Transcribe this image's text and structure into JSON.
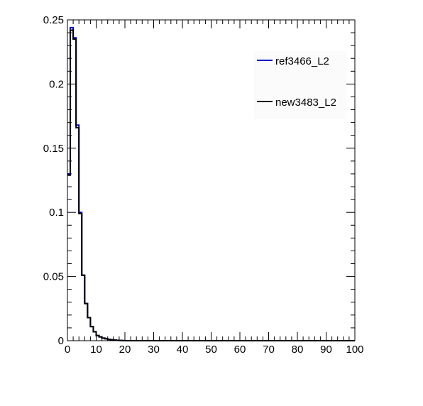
{
  "chart_data": {
    "type": "line",
    "style": "step-histogram",
    "xlim": [
      0,
      100
    ],
    "ylim": [
      0,
      0.25
    ],
    "x_ticks": [
      "0",
      "10",
      "20",
      "30",
      "40",
      "50",
      "60",
      "70",
      "80",
      "90",
      "100"
    ],
    "y_ticks": [
      "0",
      "0.05",
      "0.1",
      "0.15",
      "0.2",
      "0.25"
    ],
    "bin_width": 1,
    "x": [
      0,
      1,
      2,
      3,
      4,
      5,
      6,
      7,
      8,
      9,
      10,
      11,
      12,
      13,
      14,
      15,
      16,
      17,
      18,
      19
    ],
    "series": [
      {
        "name": "ref3466_L2",
        "color": "#0000cc",
        "values": [
          0.13,
          0.244,
          0.236,
          0.168,
          0.1,
          0.051,
          0.029,
          0.018,
          0.011,
          0.007,
          0.004,
          0.003,
          0.002,
          0.0015,
          0.001,
          0.0007,
          0.0005,
          0.0003,
          0.0002,
          0.0001
        ]
      },
      {
        "name": "new3483_L2",
        "color": "#000000",
        "values": [
          0.129,
          0.242,
          0.235,
          0.166,
          0.099,
          0.051,
          0.029,
          0.018,
          0.011,
          0.007,
          0.004,
          0.003,
          0.002,
          0.0015,
          0.001,
          0.0007,
          0.0005,
          0.0003,
          0.0002,
          0.0001
        ]
      }
    ],
    "grid": false,
    "legend_position": "top-right"
  }
}
